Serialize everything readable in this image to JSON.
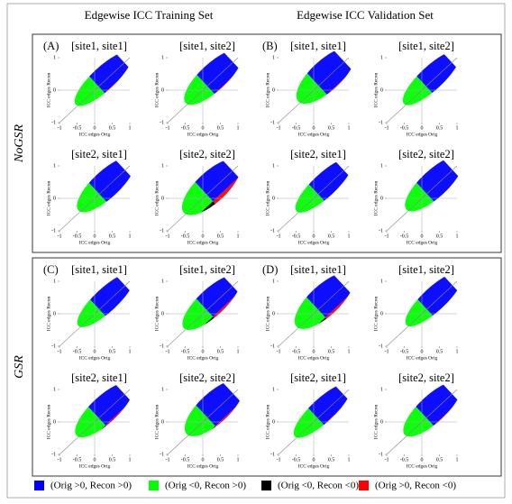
{
  "header": {
    "columns": [
      "Edgewise ICC Training Set",
      "Edgewise ICC Validation Set"
    ]
  },
  "groups": [
    {
      "label": "NoGSR",
      "panels": [
        {
          "letter": "(A)",
          "title": "[site1, site1]"
        },
        {
          "title": "[site1, site2]"
        },
        {
          "letter": "(B)",
          "title": "[site1, site1]"
        },
        {
          "title": "[site1, site2]"
        },
        {
          "title": "[site2, site1]"
        },
        {
          "title": "[site2, site2]"
        },
        {
          "title": "[site2, site1]"
        },
        {
          "title": "[site2, site2]"
        }
      ]
    },
    {
      "label": "GSR",
      "panels": [
        {
          "letter": "(C)",
          "title": "[site1, site1]"
        },
        {
          "title": "[site1, site2]"
        },
        {
          "letter": "(D)",
          "title": "[site1, site1]"
        },
        {
          "title": "[site1, site2]"
        },
        {
          "title": "[site2, site1]"
        },
        {
          "title": "[site2, site2]"
        },
        {
          "title": "[site2, site1]"
        },
        {
          "title": "[site2, site2]"
        }
      ]
    }
  ],
  "axes": {
    "xlabel": "ICC edges Orig",
    "ylabel": "ICC edges Recon",
    "xticks": [
      -1,
      -0.5,
      0,
      0.5,
      1
    ],
    "yticks": [
      -1,
      0,
      1
    ]
  },
  "legend": [
    {
      "color": "#0000ff",
      "label": "(Orig >0, Recon >0)"
    },
    {
      "color": "#00ff00",
      "label": "(Orig <0, Recon >0)"
    },
    {
      "color": "#000000",
      "label": "(Orig <0, Recon <0)"
    },
    {
      "color": "#ff0000",
      "label": "(Orig >0, Recon <0)"
    }
  ]
}
